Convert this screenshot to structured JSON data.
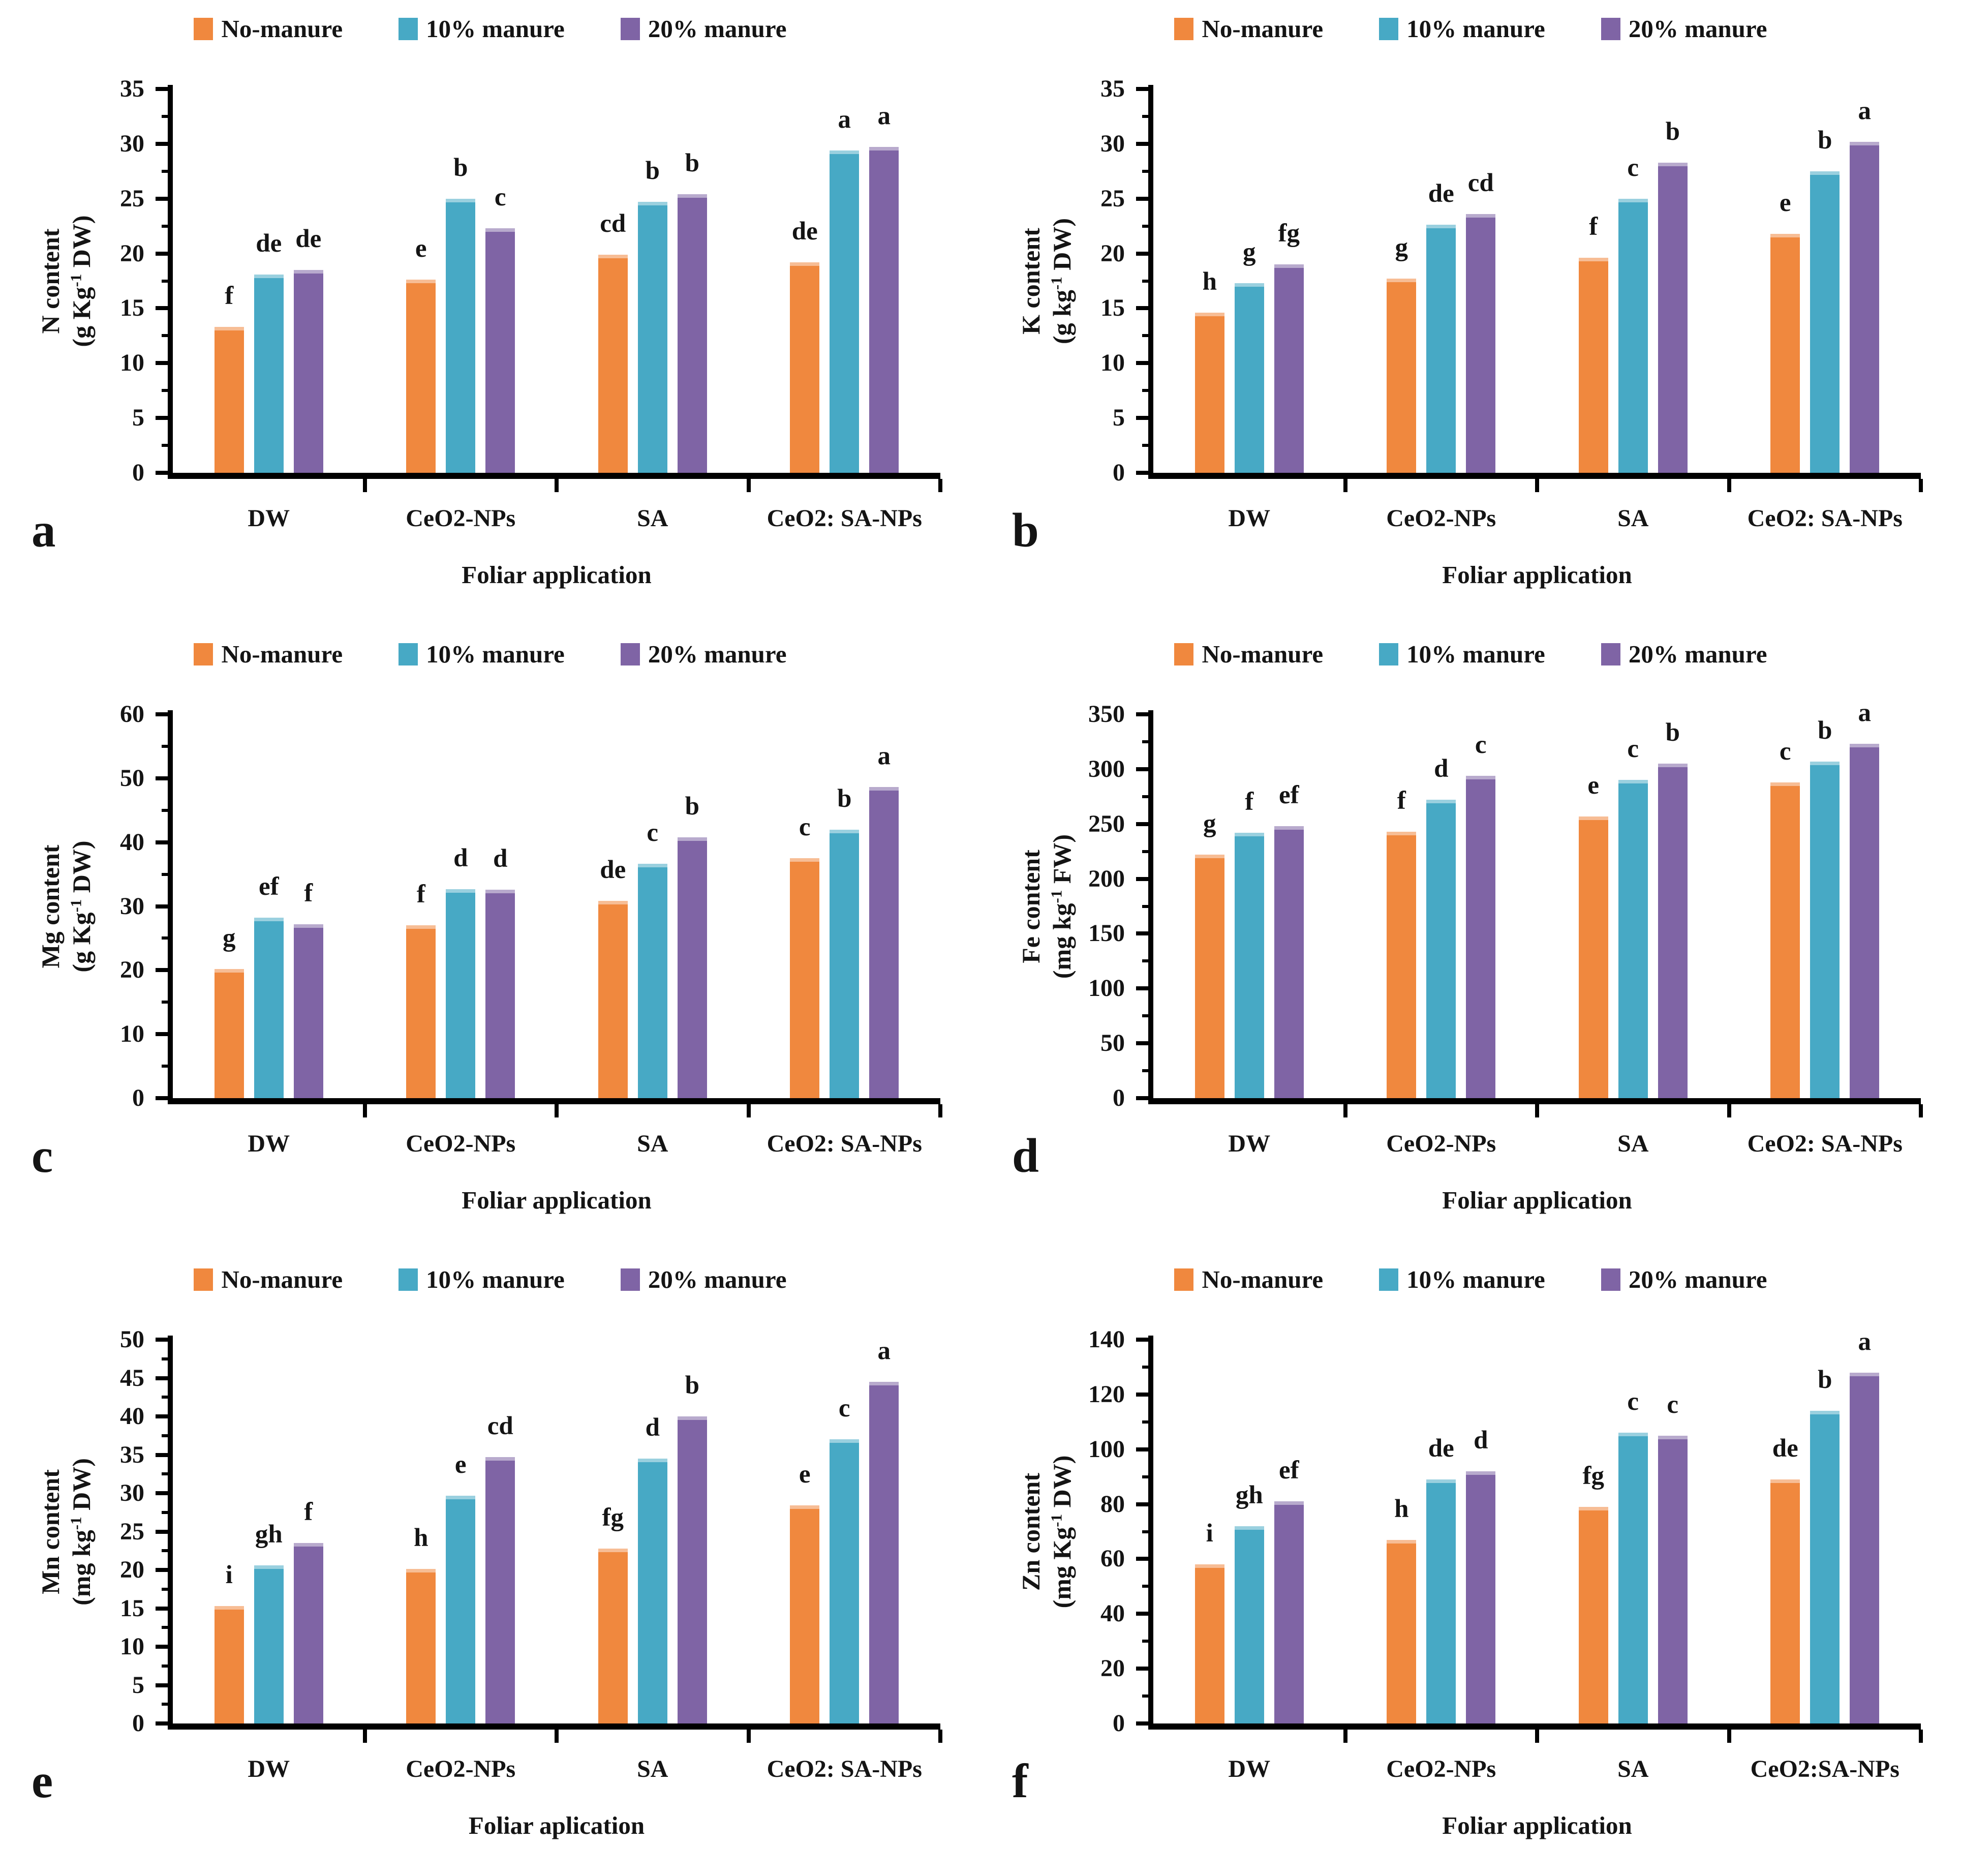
{
  "figure": {
    "background": "#ffffff"
  },
  "series_colors": [
    "#F0883E",
    "#47A9C5",
    "#7F64A5"
  ],
  "axis_color": "#000000",
  "legend_labels": [
    "No-manure",
    "10% manure",
    "20% manure"
  ],
  "chart_data": [
    {
      "id": "a",
      "type": "bar",
      "panel_letter": "a",
      "ylabel_line1": "N content",
      "ylabel_line2": "(g Kg^-1 DW)",
      "xlabel": "Foliar application",
      "ylim": [
        0,
        35
      ],
      "ytick_step": 5,
      "grid": false,
      "legend_position": "top",
      "categories": [
        "DW",
        "CeO2-NPs",
        "SA",
        "CeO2: SA-NPs"
      ],
      "series": [
        {
          "name": "No-manure",
          "values": [
            13.3,
            17.6,
            19.9,
            19.2
          ],
          "letters": [
            "f",
            "e",
            "cd",
            "de"
          ]
        },
        {
          "name": "10% manure",
          "values": [
            18.1,
            25.0,
            24.7,
            29.4
          ],
          "letters": [
            "de",
            "b",
            "b",
            "a"
          ]
        },
        {
          "name": "20% manure",
          "values": [
            18.5,
            22.3,
            25.4,
            29.7
          ],
          "letters": [
            "de",
            "c",
            "b",
            "a"
          ]
        }
      ]
    },
    {
      "id": "b",
      "type": "bar",
      "panel_letter": "b",
      "ylabel_line1": "K content",
      "ylabel_line2": "(g kg^-1 DW)",
      "xlabel": "Foliar application",
      "ylim": [
        0,
        35
      ],
      "ytick_step": 5,
      "grid": false,
      "legend_position": "top",
      "categories": [
        "DW",
        "CeO2-NPs",
        "SA",
        "CeO2: SA-NPs"
      ],
      "series": [
        {
          "name": "No-manure",
          "values": [
            14.6,
            17.7,
            19.6,
            21.8
          ],
          "letters": [
            "h",
            "g",
            "f",
            "e"
          ]
        },
        {
          "name": "10% manure",
          "values": [
            17.3,
            22.6,
            25.0,
            27.5
          ],
          "letters": [
            "g",
            "de",
            "c",
            "b"
          ]
        },
        {
          "name": "20% manure",
          "values": [
            19.0,
            23.6,
            28.3,
            30.2
          ],
          "letters": [
            "fg",
            "cd",
            "b",
            "a"
          ]
        }
      ]
    },
    {
      "id": "c",
      "type": "bar",
      "panel_letter": "c",
      "ylabel_line1": "Mg content",
      "ylabel_line2": "(g Kg^-1 DW)",
      "xlabel": "Foliar application",
      "ylim": [
        0,
        60
      ],
      "ytick_step": 10,
      "grid": false,
      "legend_position": "top",
      "categories": [
        "DW",
        "CeO2-NPs",
        "SA",
        "CeO2: SA-NPs"
      ],
      "series": [
        {
          "name": "No-manure",
          "values": [
            20.2,
            27.0,
            30.8,
            37.5
          ],
          "letters": [
            "g",
            "f",
            "de",
            "c"
          ]
        },
        {
          "name": "10% manure",
          "values": [
            28.2,
            32.7,
            36.6,
            42.0
          ],
          "letters": [
            "ef",
            "d",
            "c",
            "b"
          ]
        },
        {
          "name": "20% manure",
          "values": [
            27.2,
            32.6,
            40.8,
            48.6
          ],
          "letters": [
            "f",
            "d",
            "b",
            "a"
          ]
        }
      ]
    },
    {
      "id": "d",
      "type": "bar",
      "panel_letter": "d",
      "ylabel_line1": "Fe content",
      "ylabel_line2": "(mg kg^-1 FW)",
      "xlabel": "Foliar application",
      "ylim": [
        0,
        350
      ],
      "ytick_step": 50,
      "grid": false,
      "legend_position": "top",
      "categories": [
        "DW",
        "CeO2-NPs",
        "SA",
        "CeO2: SA-NPs"
      ],
      "series": [
        {
          "name": "No-manure",
          "values": [
            222,
            243,
            257,
            288
          ],
          "letters": [
            "g",
            "f",
            "e",
            "c"
          ]
        },
        {
          "name": "10% manure",
          "values": [
            242,
            272,
            290,
            307
          ],
          "letters": [
            "f",
            "d",
            "c",
            "b"
          ]
        },
        {
          "name": "20% manure",
          "values": [
            248,
            294,
            305,
            323
          ],
          "letters": [
            "ef",
            "c",
            "b",
            "a"
          ]
        }
      ]
    },
    {
      "id": "e",
      "type": "bar",
      "panel_letter": "e",
      "ylabel_line1": "Mn content",
      "ylabel_line2": "(mg kg^-1 DW)",
      "xlabel": "Foliar aplication",
      "ylim": [
        0,
        50
      ],
      "ytick_step": 5,
      "grid": false,
      "legend_position": "top",
      "categories": [
        "DW",
        "CeO2-NPs",
        "SA",
        "CeO2: SA-NPs"
      ],
      "series": [
        {
          "name": "No-manure",
          "values": [
            15.3,
            20.1,
            22.8,
            28.4
          ],
          "letters": [
            "i",
            "h",
            "fg",
            "e"
          ]
        },
        {
          "name": "10% manure",
          "values": [
            20.6,
            29.7,
            34.5,
            37.0
          ],
          "letters": [
            "gh",
            "e",
            "d",
            "c"
          ]
        },
        {
          "name": "20% manure",
          "values": [
            23.5,
            34.7,
            40.0,
            44.5
          ],
          "letters": [
            "f",
            "cd",
            "b",
            "a"
          ]
        }
      ]
    },
    {
      "id": "f",
      "type": "bar",
      "panel_letter": "f",
      "ylabel_line1": "Zn content",
      "ylabel_line2": "(mg Kg^-1 DW)",
      "xlabel": "Foliar application",
      "ylim": [
        0,
        140
      ],
      "ytick_step": 20,
      "grid": false,
      "legend_position": "top",
      "categories": [
        "DW",
        "CeO2-NPs",
        "SA",
        "CeO2:SA-NPs"
      ],
      "series": [
        {
          "name": "No-manure",
          "values": [
            58,
            67,
            79,
            89
          ],
          "letters": [
            "i",
            "h",
            "fg",
            "de"
          ]
        },
        {
          "name": "10% manure",
          "values": [
            72,
            89,
            106,
            114
          ],
          "letters": [
            "gh",
            "de",
            "c",
            "b"
          ]
        },
        {
          "name": "20% manure",
          "values": [
            81,
            92,
            105,
            128
          ],
          "letters": [
            "ef",
            "d",
            "c",
            "a"
          ]
        }
      ]
    }
  ]
}
